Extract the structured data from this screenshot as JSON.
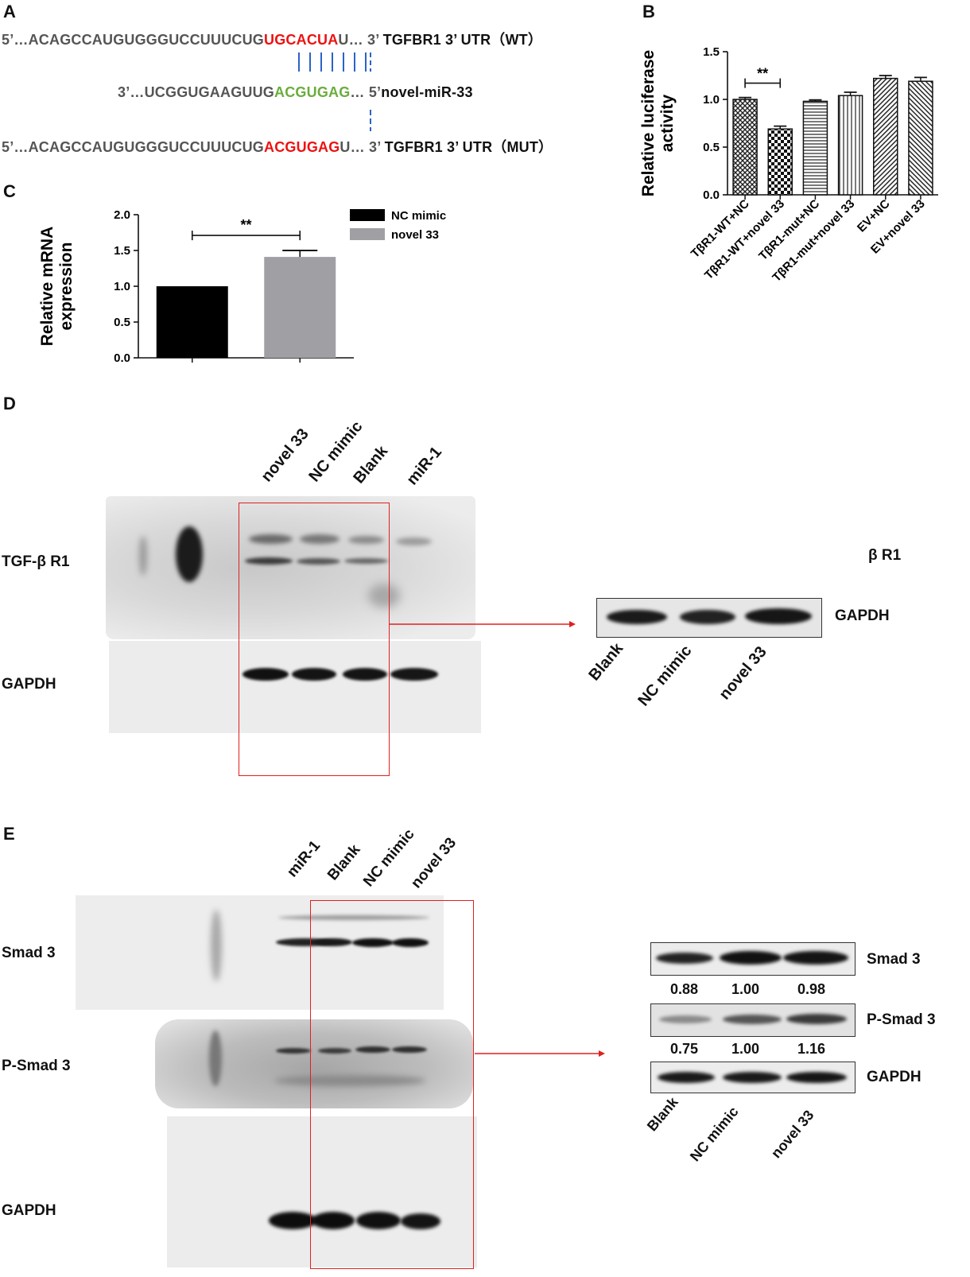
{
  "panel_a": {
    "label": "A",
    "wt": {
      "prefix": "5’…ACAGCCAUGUGGGUCCUUUCUG",
      "site": "UGCACUA",
      "suffix": "U… 3’",
      "name": "TGFBR1 3’ UTR（WT）"
    },
    "mirna": {
      "prefix": "3’…UCGGUGAAGUUG",
      "seed": "ACGUGAG",
      "suffix": "… 5’",
      "name": "novel-miR-33"
    },
    "mut": {
      "prefix": "5’…ACAGCCAUGUGGGUCCUUUCUG",
      "site": "ACGUGAG",
      "suffix": "U… 3’",
      "name": "TGFBR1 3’ UTR（MUT）"
    }
  },
  "panel_b": {
    "label": "B"
  },
  "panel_c": {
    "label": "C"
  },
  "panel_d": {
    "label": "D",
    "lanes": [
      "novel 33",
      "NC mimic",
      "Blank",
      "miR-1"
    ],
    "row_labels": [
      "TGF-β R1",
      "GAPDH"
    ],
    "crop_title": "β R1",
    "crop_row_label": "GAPDH",
    "crop_lanes": [
      "Blank",
      "NC mimic",
      "novel 33"
    ]
  },
  "panel_e": {
    "label": "E",
    "lanes": [
      "miR-1",
      "Blank",
      "NC mimic",
      "novel 33"
    ],
    "row_labels": [
      "Smad 3",
      "P-Smad 3",
      "GAPDH"
    ],
    "crop_rows": [
      "Smad 3",
      "P-Smad 3",
      "GAPDH"
    ],
    "smad3_values": [
      "0.88",
      "1.00",
      "0.98"
    ],
    "psmad3_values": [
      "0.75",
      "1.00",
      "1.16"
    ],
    "crop_lanes": [
      "Blank",
      "NC mimic",
      "novel 33"
    ]
  },
  "chart_data": [
    {
      "panel": "B",
      "type": "bar",
      "ylabel": "Relative luciferase activity",
      "categories": [
        "TβR1-WT+NC",
        "TβR1-WT+novel 33",
        "TβR1-mut+NC",
        "TβR1-mut+novel 33",
        "EV+NC",
        "EV+novel 33"
      ],
      "values": [
        1.0,
        0.69,
        0.98,
        1.04,
        1.22,
        1.19
      ],
      "errors": [
        0.02,
        0.03,
        0.015,
        0.035,
        0.03,
        0.04
      ],
      "patterns": [
        "crosshatch",
        "checker",
        "horizontal",
        "vertical",
        "diagonal-left",
        "diagonal-right"
      ],
      "yticks": [
        "0.0",
        "0.5",
        "1.0",
        "1.5"
      ],
      "ylim": [
        0,
        1.5
      ],
      "significance": {
        "between": [
          0,
          1
        ],
        "label": "**"
      }
    },
    {
      "panel": "C",
      "type": "bar",
      "ylabel": "Relative mRNA expression",
      "categories": [
        "NC mimic",
        "novel 33"
      ],
      "values": [
        1.0,
        1.41
      ],
      "errors": [
        0,
        0.09
      ],
      "colors": [
        "#000000",
        "#a0a0a4"
      ],
      "legend": [
        "NC mimic",
        "novel 33"
      ],
      "yticks": [
        "0.0",
        "0.5",
        "1.0",
        "1.5",
        "2.0"
      ],
      "ylim": [
        0,
        2.0
      ],
      "significance": {
        "between": [
          0,
          1
        ],
        "label": "**"
      }
    }
  ]
}
